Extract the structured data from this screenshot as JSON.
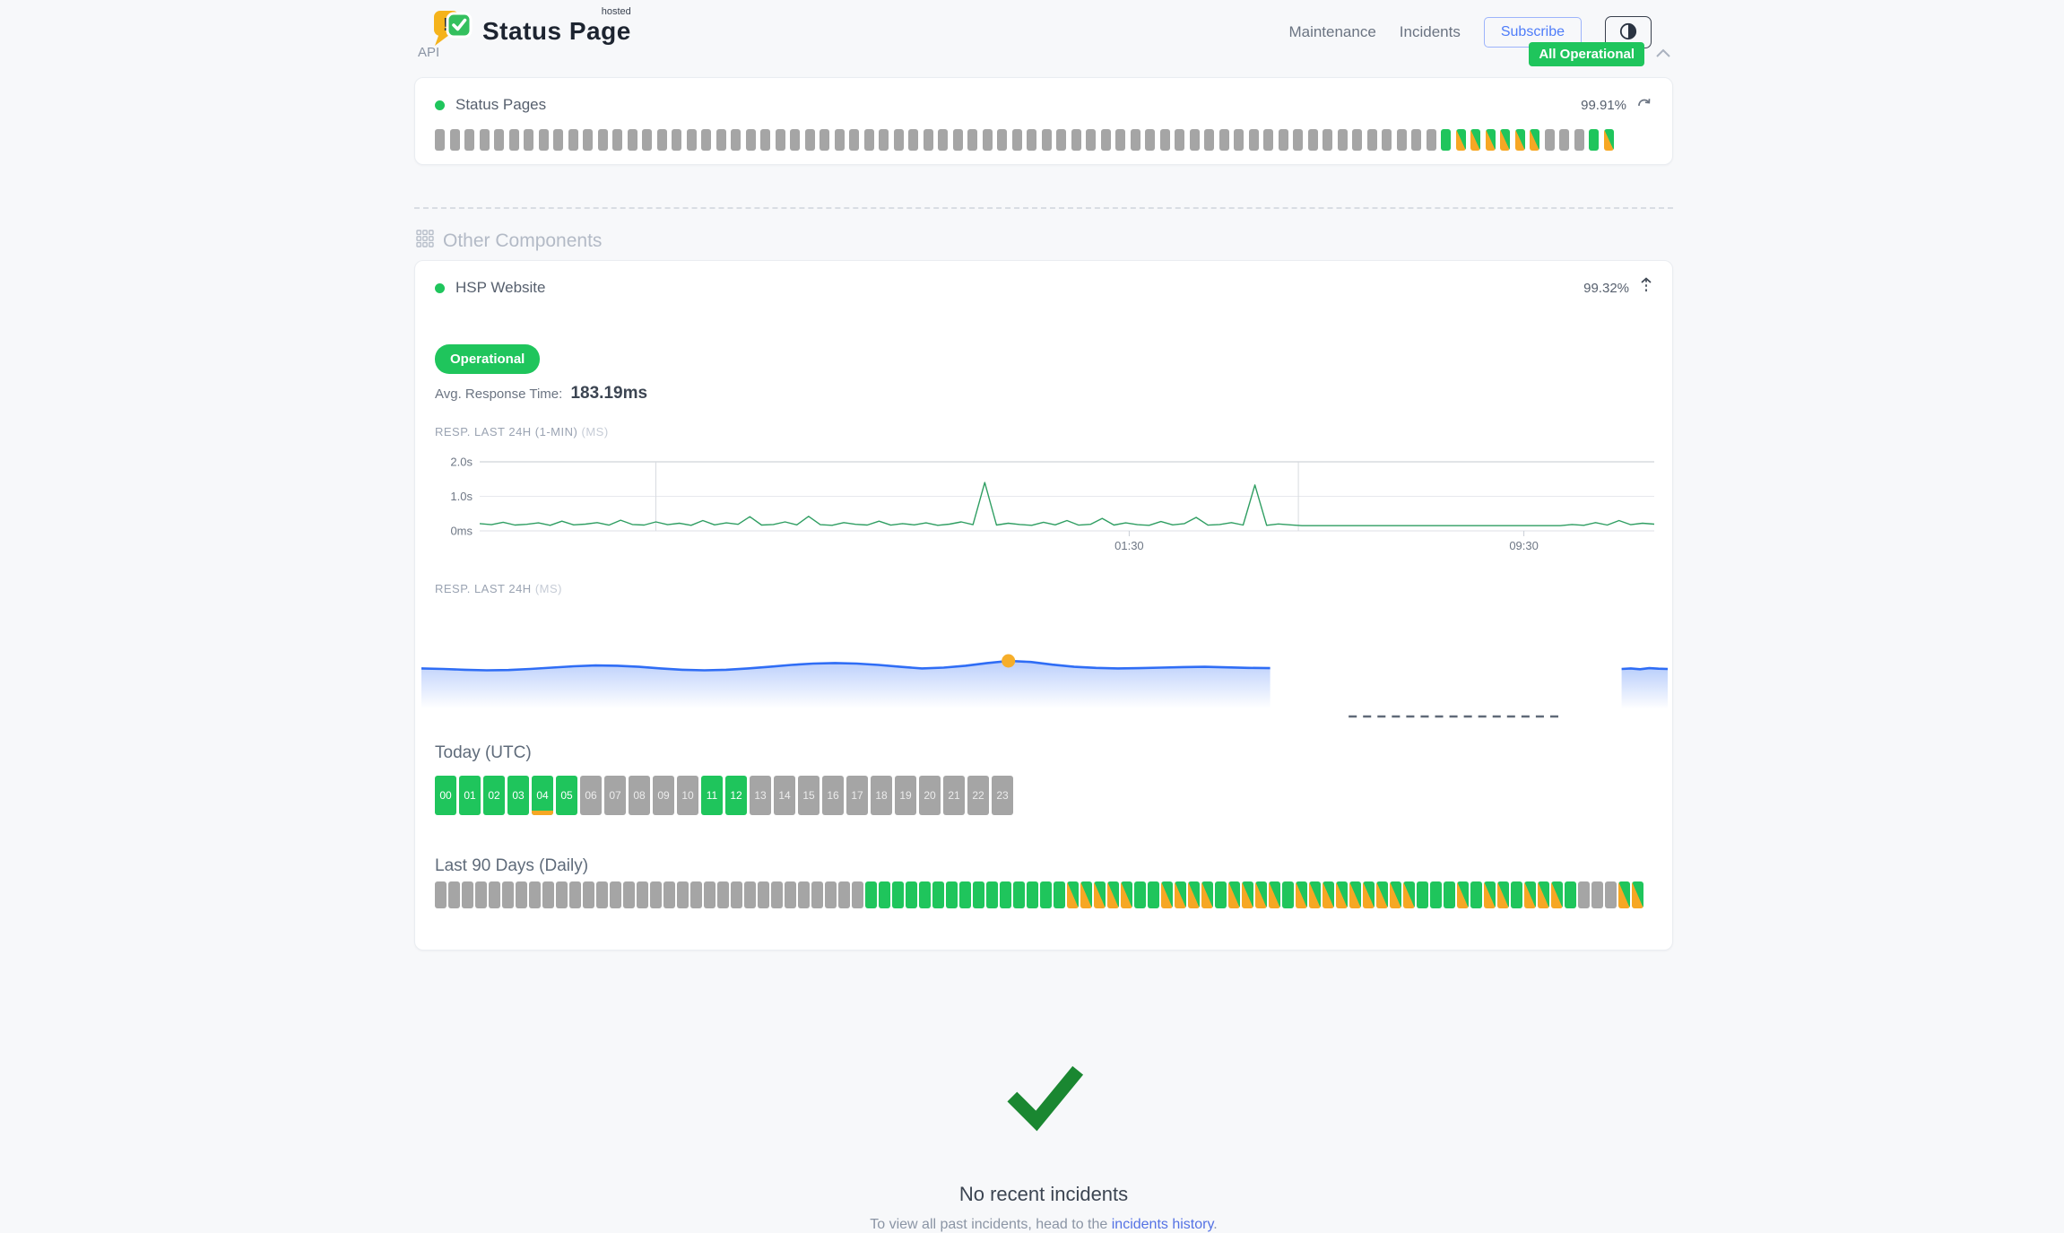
{
  "header": {
    "brand": {
      "title": "Status Page",
      "superscript": "hosted"
    },
    "nav": [
      {
        "label": "Maintenance"
      },
      {
        "label": "Incidents"
      }
    ],
    "subscribe_label": "Subscribe",
    "overall_status": "All Operational"
  },
  "api_section": {
    "title": "API",
    "component": {
      "name": "Status Pages",
      "uptime": "99.91%",
      "bars_legend": {
        "e": "no-data",
        "u": "operational",
        "d": "degraded"
      },
      "uptime_bars": "e*68,u,d*6,e*3,u,d"
    }
  },
  "other_components": {
    "title": "Other Components",
    "component": {
      "name": "HSP Website",
      "uptime": "99.32%",
      "status_badge": "Operational",
      "avg_response": {
        "label": "Avg. Response Time:",
        "value": "183.19ms"
      },
      "today": {
        "title": "Today (UTC)",
        "hours": [
          {
            "h": "00",
            "s": "u"
          },
          {
            "h": "01",
            "s": "u"
          },
          {
            "h": "02",
            "s": "u"
          },
          {
            "h": "03",
            "s": "u"
          },
          {
            "h": "04",
            "s": "ui"
          },
          {
            "h": "05",
            "s": "u"
          },
          {
            "h": "06",
            "s": "e"
          },
          {
            "h": "07",
            "s": "e"
          },
          {
            "h": "08",
            "s": "e"
          },
          {
            "h": "09",
            "s": "e"
          },
          {
            "h": "10",
            "s": "e"
          },
          {
            "h": "11",
            "s": "u"
          },
          {
            "h": "12",
            "s": "u"
          },
          {
            "h": "13",
            "s": "e"
          },
          {
            "h": "14",
            "s": "e"
          },
          {
            "h": "15",
            "s": "e"
          },
          {
            "h": "16",
            "s": "e"
          },
          {
            "h": "17",
            "s": "e"
          },
          {
            "h": "18",
            "s": "e"
          },
          {
            "h": "19",
            "s": "e"
          },
          {
            "h": "20",
            "s": "e"
          },
          {
            "h": "21",
            "s": "e"
          },
          {
            "h": "22",
            "s": "e"
          },
          {
            "h": "23",
            "s": "e"
          }
        ]
      },
      "last_90_days": {
        "title": "Last 90 Days (Daily)",
        "days": "e*32,u*15,d*5,u*2,d*4,u,d*4,u,d*9,u*3,d,u,d*2,u,d*3,u,e*3,d*2"
      }
    }
  },
  "chart_data": [
    {
      "type": "line",
      "title": "RESP. LAST 24H (1-MIN)",
      "unit": "(MS)",
      "ylabel_ticks": [
        "2.0s",
        "1.0s",
        "0ms"
      ],
      "ylim_ms": [
        0,
        2000
      ],
      "xticks": [
        {
          "label": "01:30",
          "pct": 55.3
        },
        {
          "label": "09:30",
          "pct": 88.9
        }
      ],
      "day_separators_pct": [
        15,
        69.7
      ],
      "values_ms": [
        210,
        180,
        250,
        170,
        190,
        230,
        160,
        280,
        175,
        195,
        240,
        165,
        310,
        185,
        170,
        260,
        180,
        220,
        160,
        300,
        175,
        230,
        190,
        410,
        170,
        185,
        260,
        175,
        420,
        180,
        160,
        240,
        190,
        170,
        280,
        165,
        210,
        175,
        230,
        160,
        195,
        260,
        180,
        1400,
        170,
        220,
        185,
        160,
        250,
        175,
        300,
        165,
        190,
        360,
        170,
        230,
        180,
        160,
        270,
        175,
        210,
        390,
        165,
        185,
        240,
        170,
        1330,
        160,
        200,
        175,
        150,
        150,
        150,
        150,
        150,
        150,
        150,
        150,
        150,
        150,
        150,
        150,
        150,
        150,
        150,
        150,
        150,
        150,
        150,
        150,
        150,
        150,
        150,
        185,
        160,
        240,
        170,
        300,
        180,
        220,
        195
      ]
    },
    {
      "type": "area",
      "title": "RESP. LAST 24H",
      "unit": "(MS)",
      "segments": [
        {
          "x_pct": [
            0,
            68.1
          ],
          "values_ms": [
            152,
            150,
            147,
            145,
            146,
            150,
            155,
            160,
            163,
            162,
            158,
            152,
            147,
            145,
            147,
            152,
            158,
            165,
            170,
            172,
            170,
            165,
            158,
            152,
            155,
            162,
            172,
            180,
            176,
            166,
            158,
            154,
            152,
            153,
            155,
            157,
            158,
            156,
            154,
            153
          ]
        },
        {
          "x_pct": [
            96.3,
            100
          ],
          "values_ms": [
            150,
            152,
            149,
            153,
            151,
            150
          ]
        }
      ],
      "no_data_dash_pct": [
        74.4,
        91.5
      ],
      "marker": {
        "x_pct": 47.1,
        "value_ms": 180
      }
    }
  ],
  "incidents_footer": {
    "title": "No recent incidents",
    "hint_prefix": "To view all past incidents, head to the ",
    "link_label": "incidents history",
    "suffix": "."
  },
  "colors": {
    "green": "#1fc55c",
    "orange": "#f6a724",
    "gray_bar": "#a5a5a5",
    "chart_line_green": "#2f9e62",
    "area_blue": "#2f6df5",
    "marker_orange": "#f6ae2a",
    "check_green": "#1a8731",
    "link_blue": "#5472e4"
  }
}
